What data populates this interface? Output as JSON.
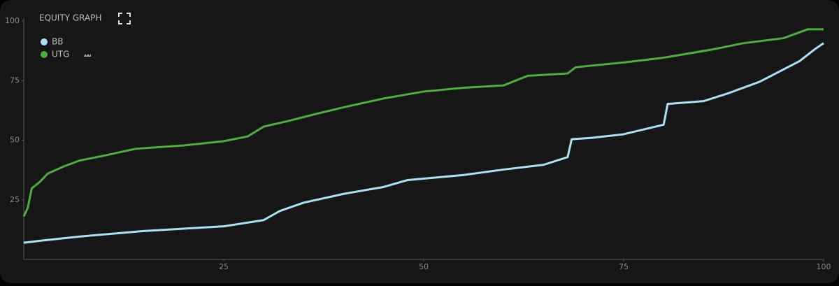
{
  "chart_data": {
    "type": "line",
    "title": "EQUITY GRAPH",
    "xlim": [
      0,
      100
    ],
    "ylim": [
      0,
      100
    ],
    "xticks": [
      25,
      50,
      75,
      100
    ],
    "yticks": [
      25,
      50,
      75,
      100
    ],
    "series": [
      {
        "name": "BB",
        "color": "#a6e3f5",
        "x": [
          0,
          2,
          7,
          15,
          25,
          30,
          32,
          35,
          40,
          45,
          48,
          55,
          60,
          65,
          68,
          68.5,
          71,
          75,
          80,
          80.5,
          85,
          88,
          92,
          95,
          97,
          99,
          100
        ],
        "values": [
          7,
          7.8,
          9.6,
          11.9,
          13.9,
          16.5,
          20.3,
          23.8,
          27.5,
          30.4,
          33.3,
          35.4,
          37.7,
          39.7,
          42.9,
          50.4,
          51,
          52.5,
          56.5,
          65.2,
          66.4,
          69.6,
          74.5,
          79.7,
          83.2,
          88.4,
          90.7
        ]
      },
      {
        "name": "UTG",
        "color": "#4caf3c",
        "x": [
          0,
          0.5,
          1,
          2,
          3,
          5,
          7,
          10,
          14,
          20,
          25,
          28,
          30,
          33,
          37,
          40,
          45,
          50,
          55,
          60,
          63,
          68,
          69,
          75,
          80,
          86,
          90,
          95,
          98,
          100
        ],
        "values": [
          18,
          21.7,
          29.8,
          32.5,
          36,
          39,
          41.5,
          43.5,
          46.4,
          47.8,
          49.6,
          51.6,
          55.7,
          58,
          61.4,
          63.8,
          67.5,
          70.4,
          72,
          73,
          77,
          78,
          80.6,
          82.6,
          84.6,
          88,
          90.7,
          92.8,
          96.5,
          96.5
        ]
      }
    ]
  }
}
